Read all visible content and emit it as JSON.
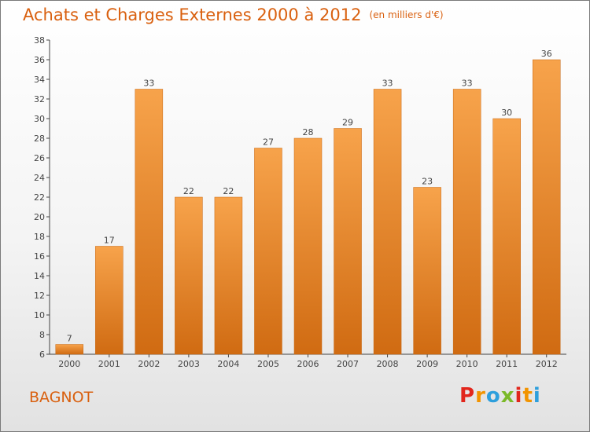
{
  "header": {
    "title": "Achats et Charges Externes 2000 à 2012",
    "unit": "(en milliers d'€)"
  },
  "footer": {
    "commune": "BAGNOT",
    "logo_letters": [
      "P",
      "r",
      "o",
      "x",
      "i",
      "t",
      "i"
    ],
    "logo_colors": [
      "#e2261c",
      "#f29400",
      "#2e9fdc",
      "#7bb928",
      "#e2261c",
      "#f29400",
      "#2e9fdc"
    ]
  },
  "colors": {
    "bar_top": "#f7a34b",
    "bar_bottom": "#d06b12",
    "bar_edge": "#c8660f",
    "accent": "#d9600f"
  },
  "chart_data": {
    "type": "bar",
    "categories": [
      "2000",
      "2001",
      "2002",
      "2003",
      "2004",
      "2005",
      "2006",
      "2007",
      "2008",
      "2009",
      "2010",
      "2011",
      "2012"
    ],
    "values": [
      7,
      17,
      33,
      22,
      22,
      27,
      28,
      29,
      33,
      23,
      33,
      30,
      36
    ],
    "ylim": [
      6,
      38
    ],
    "yticks": [
      6,
      8,
      10,
      12,
      14,
      16,
      18,
      20,
      22,
      24,
      26,
      28,
      30,
      32,
      34,
      36,
      38
    ],
    "grid": false,
    "legend": "none"
  }
}
